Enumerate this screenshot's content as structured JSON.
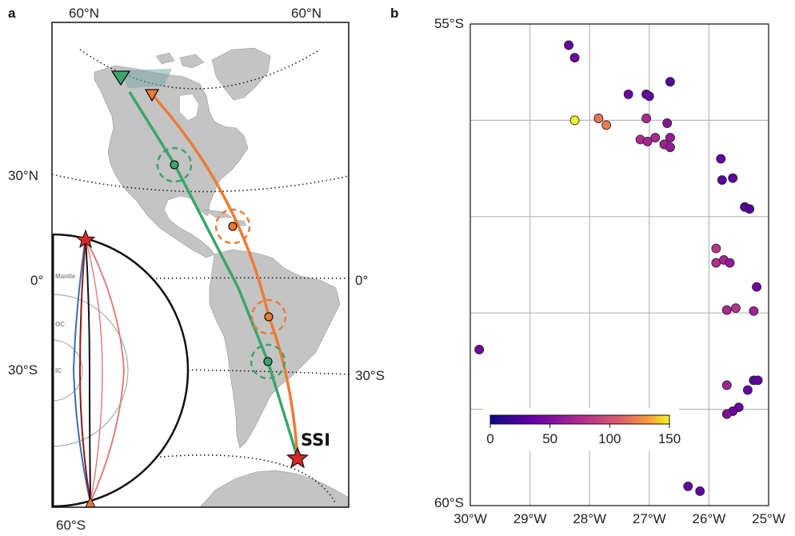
{
  "panel_a": {
    "label": "a",
    "lat_labels": {
      "top_left": "60°N",
      "top_right": "60°N",
      "n30": "30°N",
      "eq_left": "0°",
      "eq_right": "0°",
      "s30_left": "30°S",
      "s30_right": "30°S",
      "bottom": "60°S"
    },
    "source_name": "SSI",
    "inset_layers": {
      "mantle": "Mantle",
      "outer_core": "OC",
      "inner_core": "IC"
    },
    "colors": {
      "land": "#c4c4c4",
      "green_path": "#3aa66a",
      "orange_path": "#ec7c34",
      "star": "#d62728"
    }
  },
  "chart_data": {
    "type": "scatter",
    "label": "b",
    "x_ticks": [
      "30°W",
      "29°W",
      "28°W",
      "27°W",
      "26°W",
      "25°W"
    ],
    "y_ticks": [
      "55°S",
      "60°S"
    ],
    "xlim": [
      -30,
      -25
    ],
    "ylim": [
      -60,
      -55
    ],
    "grid": true,
    "colorbar": {
      "ticks": [
        "0",
        "50",
        "100",
        "150"
      ],
      "min": 0,
      "max": 150,
      "colormap": "plasma",
      "placement": "bottom-left"
    },
    "points": [
      {
        "lon": -28.35,
        "lat": -55.22,
        "value": 35
      },
      {
        "lon": -28.25,
        "lat": -55.35,
        "value": 40
      },
      {
        "lon": -26.65,
        "lat": -55.6,
        "value": 30
      },
      {
        "lon": -27.35,
        "lat": -55.73,
        "value": 38
      },
      {
        "lon": -27.05,
        "lat": -55.73,
        "value": 34
      },
      {
        "lon": -27.0,
        "lat": -55.75,
        "value": 36
      },
      {
        "lon": -28.25,
        "lat": -56.0,
        "value": 150
      },
      {
        "lon": -27.85,
        "lat": -55.98,
        "value": 118
      },
      {
        "lon": -27.72,
        "lat": -56.05,
        "value": 120
      },
      {
        "lon": -27.05,
        "lat": -55.98,
        "value": 72
      },
      {
        "lon": -26.7,
        "lat": -56.03,
        "value": 55
      },
      {
        "lon": -27.15,
        "lat": -56.2,
        "value": 75
      },
      {
        "lon": -27.03,
        "lat": -56.22,
        "value": 70
      },
      {
        "lon": -26.9,
        "lat": -56.18,
        "value": 72
      },
      {
        "lon": -26.65,
        "lat": -56.18,
        "value": 62
      },
      {
        "lon": -26.75,
        "lat": -56.25,
        "value": 65
      },
      {
        "lon": -26.65,
        "lat": -56.28,
        "value": 60
      },
      {
        "lon": -25.8,
        "lat": -56.4,
        "value": 35
      },
      {
        "lon": -25.78,
        "lat": -56.62,
        "value": 32
      },
      {
        "lon": -25.6,
        "lat": -56.6,
        "value": 34
      },
      {
        "lon": -25.4,
        "lat": -56.9,
        "value": 30
      },
      {
        "lon": -25.32,
        "lat": -56.92,
        "value": 28
      },
      {
        "lon": -25.88,
        "lat": -57.33,
        "value": 82
      },
      {
        "lon": -25.88,
        "lat": -57.48,
        "value": 78
      },
      {
        "lon": -25.75,
        "lat": -57.45,
        "value": 70
      },
      {
        "lon": -25.65,
        "lat": -57.48,
        "value": 60
      },
      {
        "lon": -25.2,
        "lat": -57.73,
        "value": 42
      },
      {
        "lon": -25.7,
        "lat": -57.97,
        "value": 72
      },
      {
        "lon": -25.55,
        "lat": -57.95,
        "value": 80
      },
      {
        "lon": -25.25,
        "lat": -57.98,
        "value": 66
      },
      {
        "lon": -29.85,
        "lat": -58.38,
        "value": 40
      },
      {
        "lon": -25.25,
        "lat": -58.7,
        "value": 30
      },
      {
        "lon": -25.18,
        "lat": -58.7,
        "value": 33
      },
      {
        "lon": -25.7,
        "lat": -58.75,
        "value": 68
      },
      {
        "lon": -25.35,
        "lat": -58.8,
        "value": 37
      },
      {
        "lon": -25.5,
        "lat": -58.98,
        "value": 38
      },
      {
        "lon": -25.6,
        "lat": -59.02,
        "value": 40
      },
      {
        "lon": -25.7,
        "lat": -59.05,
        "value": 50
      },
      {
        "lon": -26.35,
        "lat": -59.8,
        "value": 35
      },
      {
        "lon": -26.15,
        "lat": -59.85,
        "value": 33
      }
    ]
  }
}
